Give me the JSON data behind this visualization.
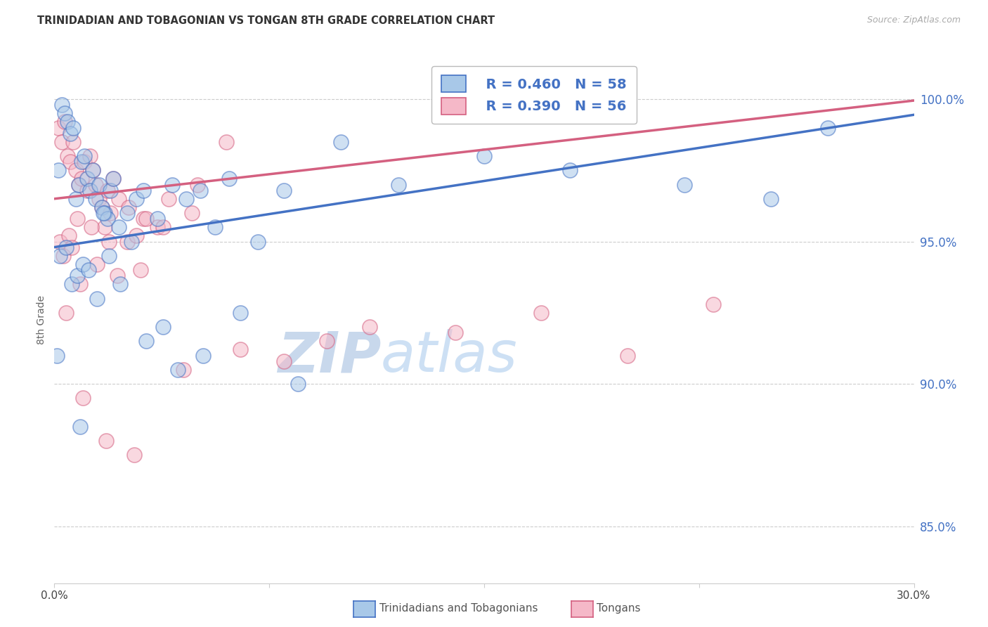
{
  "title": "TRINIDADIAN AND TOBAGONIAN VS TONGAN 8TH GRADE CORRELATION CHART",
  "source": "Source: ZipAtlas.com",
  "ylabel": "8th Grade",
  "legend_blue_label": "Trinidadians and Tobagonians",
  "legend_pink_label": "Tongans",
  "blue_R": 0.46,
  "blue_N": 58,
  "pink_R": 0.39,
  "pink_N": 56,
  "x_min": 0.0,
  "x_max": 30.0,
  "y_min": 83.0,
  "y_max": 101.5,
  "y_ticks": [
    85.0,
    90.0,
    95.0,
    100.0
  ],
  "blue_marker_color": "#a8c8e8",
  "blue_edge_color": "#4472c4",
  "pink_marker_color": "#f5b8c8",
  "pink_edge_color": "#d46080",
  "blue_line_color": "#4472c4",
  "pink_line_color": "#d46080",
  "grid_color": "#cccccc",
  "ytick_color": "#4472c4",
  "watermark_zip_color": "#c8d8ec",
  "watermark_atlas_color": "#b8d4f0",
  "blue_line_intercept": 94.8,
  "blue_line_slope": 0.155,
  "pink_line_intercept": 96.5,
  "pink_line_slope": 0.115,
  "blue_scatter_x": [
    0.15,
    0.25,
    0.35,
    0.45,
    0.55,
    0.65,
    0.75,
    0.85,
    0.95,
    1.05,
    1.15,
    1.25,
    1.35,
    1.45,
    1.55,
    1.65,
    1.75,
    1.85,
    1.95,
    2.05,
    2.25,
    2.55,
    2.85,
    3.1,
    3.6,
    4.1,
    4.6,
    5.1,
    5.6,
    6.1,
    7.1,
    0.2,
    0.4,
    0.6,
    0.8,
    1.0,
    1.2,
    1.5,
    1.9,
    2.3,
    2.7,
    3.2,
    3.8,
    4.3,
    5.2,
    6.5,
    8.5,
    10.0,
    12.0,
    15.0,
    18.0,
    22.0,
    25.0,
    27.0,
    0.1,
    0.9,
    1.7,
    8.0
  ],
  "blue_scatter_y": [
    97.5,
    99.8,
    99.5,
    99.2,
    98.8,
    99.0,
    96.5,
    97.0,
    97.8,
    98.0,
    97.2,
    96.8,
    97.5,
    96.5,
    97.0,
    96.2,
    96.0,
    95.8,
    96.8,
    97.2,
    95.5,
    96.0,
    96.5,
    96.8,
    95.8,
    97.0,
    96.5,
    96.8,
    95.5,
    97.2,
    95.0,
    94.5,
    94.8,
    93.5,
    93.8,
    94.2,
    94.0,
    93.0,
    94.5,
    93.5,
    95.0,
    91.5,
    92.0,
    90.5,
    91.0,
    92.5,
    90.0,
    98.5,
    97.0,
    98.0,
    97.5,
    97.0,
    96.5,
    99.0,
    91.0,
    88.5,
    96.0,
    96.8
  ],
  "pink_scatter_x": [
    0.15,
    0.25,
    0.35,
    0.45,
    0.55,
    0.65,
    0.75,
    0.85,
    0.95,
    1.05,
    1.15,
    1.25,
    1.35,
    1.45,
    1.55,
    1.65,
    1.75,
    1.85,
    1.95,
    2.05,
    2.25,
    2.55,
    2.85,
    3.1,
    3.6,
    0.2,
    0.5,
    0.8,
    1.3,
    1.9,
    2.6,
    3.2,
    4.0,
    5.0,
    6.0,
    0.3,
    0.6,
    0.9,
    1.5,
    2.2,
    3.0,
    4.5,
    6.5,
    8.0,
    9.5,
    11.0,
    14.0,
    17.0,
    20.0,
    23.0,
    0.4,
    1.0,
    1.8,
    2.8,
    3.8,
    4.8
  ],
  "pink_scatter_y": [
    99.0,
    98.5,
    99.2,
    98.0,
    97.8,
    98.5,
    97.5,
    97.0,
    97.2,
    97.8,
    96.8,
    98.0,
    97.5,
    97.0,
    96.5,
    96.2,
    95.5,
    96.8,
    96.0,
    97.2,
    96.5,
    95.0,
    95.2,
    95.8,
    95.5,
    95.0,
    95.2,
    95.8,
    95.5,
    95.0,
    96.2,
    95.8,
    96.5,
    97.0,
    98.5,
    94.5,
    94.8,
    93.5,
    94.2,
    93.8,
    94.0,
    90.5,
    91.2,
    90.8,
    91.5,
    92.0,
    91.8,
    92.5,
    91.0,
    92.8,
    92.5,
    89.5,
    88.0,
    87.5,
    95.5,
    96.0
  ]
}
